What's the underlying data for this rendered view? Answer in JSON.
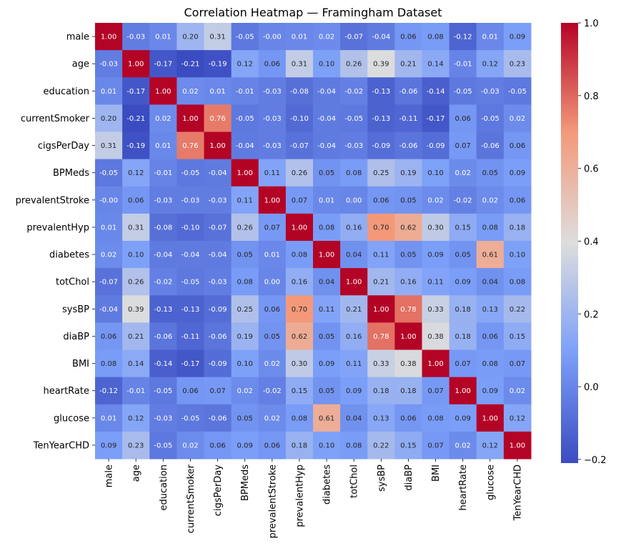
{
  "chart_data": {
    "type": "heatmap",
    "title": "Correlation Heatmap — Framingham Dataset",
    "labels": [
      "male",
      "age",
      "education",
      "currentSmoker",
      "cigsPerDay",
      "BPMeds",
      "prevalentStroke",
      "prevalentHyp",
      "diabetes",
      "totChol",
      "sysBP",
      "diaBP",
      "BMI",
      "heartRate",
      "glucose",
      "TenYearCHD"
    ],
    "matrix": [
      [
        1.0,
        -0.03,
        0.01,
        0.2,
        0.31,
        -0.05,
        -0.0,
        0.01,
        0.02,
        -0.07,
        -0.04,
        0.06,
        0.08,
        -0.12,
        0.01,
        0.09
      ],
      [
        -0.03,
        1.0,
        -0.17,
        -0.21,
        -0.19,
        0.12,
        0.06,
        0.31,
        0.1,
        0.26,
        0.39,
        0.21,
        0.14,
        -0.01,
        0.12,
        0.23
      ],
      [
        0.01,
        -0.17,
        1.0,
        0.02,
        0.01,
        -0.01,
        -0.03,
        -0.08,
        -0.04,
        -0.02,
        -0.13,
        -0.06,
        -0.14,
        -0.05,
        -0.03,
        -0.05
      ],
      [
        0.2,
        -0.21,
        0.02,
        1.0,
        0.76,
        -0.05,
        -0.03,
        -0.1,
        -0.04,
        -0.05,
        -0.13,
        -0.11,
        -0.17,
        0.06,
        -0.05,
        0.02
      ],
      [
        0.31,
        -0.19,
        0.01,
        0.76,
        1.0,
        -0.04,
        -0.03,
        -0.07,
        -0.04,
        -0.03,
        -0.09,
        -0.06,
        -0.09,
        0.07,
        -0.06,
        0.06
      ],
      [
        -0.05,
        0.12,
        -0.01,
        -0.05,
        -0.04,
        1.0,
        0.11,
        0.26,
        0.05,
        0.08,
        0.25,
        0.19,
        0.1,
        0.02,
        0.05,
        0.09
      ],
      [
        -0.0,
        0.06,
        -0.03,
        -0.03,
        -0.03,
        0.11,
        1.0,
        0.07,
        0.01,
        0.0,
        0.06,
        0.05,
        0.02,
        -0.02,
        0.02,
        0.06
      ],
      [
        0.01,
        0.31,
        -0.08,
        -0.1,
        -0.07,
        0.26,
        0.07,
        1.0,
        0.08,
        0.16,
        0.7,
        0.62,
        0.3,
        0.15,
        0.08,
        0.18
      ],
      [
        0.02,
        0.1,
        -0.04,
        -0.04,
        -0.04,
        0.05,
        0.01,
        0.08,
        1.0,
        0.04,
        0.11,
        0.05,
        0.09,
        0.05,
        0.61,
        0.1
      ],
      [
        -0.07,
        0.26,
        -0.02,
        -0.05,
        -0.03,
        0.08,
        0.0,
        0.16,
        0.04,
        1.0,
        0.21,
        0.16,
        0.11,
        0.09,
        0.04,
        0.08
      ],
      [
        -0.04,
        0.39,
        -0.13,
        -0.13,
        -0.09,
        0.25,
        0.06,
        0.7,
        0.11,
        0.21,
        1.0,
        0.78,
        0.33,
        0.18,
        0.13,
        0.22
      ],
      [
        0.06,
        0.21,
        -0.06,
        -0.11,
        -0.06,
        0.19,
        0.05,
        0.62,
        0.05,
        0.16,
        0.78,
        1.0,
        0.38,
        0.18,
        0.06,
        0.15
      ],
      [
        0.08,
        0.14,
        -0.14,
        -0.17,
        -0.09,
        0.1,
        0.02,
        0.3,
        0.09,
        0.11,
        0.33,
        0.38,
        1.0,
        0.07,
        0.08,
        0.07
      ],
      [
        -0.12,
        -0.01,
        -0.05,
        0.06,
        0.07,
        0.02,
        -0.02,
        0.15,
        0.05,
        0.09,
        0.18,
        0.18,
        0.07,
        1.0,
        0.09,
        0.02
      ],
      [
        0.01,
        0.12,
        -0.03,
        -0.05,
        -0.06,
        0.05,
        0.02,
        0.08,
        0.61,
        0.04,
        0.13,
        0.06,
        0.08,
        0.09,
        1.0,
        0.12
      ],
      [
        0.09,
        0.23,
        -0.05,
        0.02,
        0.06,
        0.09,
        0.06,
        0.18,
        0.1,
        0.08,
        0.22,
        0.15,
        0.07,
        0.02,
        0.12,
        1.0
      ]
    ],
    "colormap": "coolwarm",
    "vmin": -0.21,
    "vmax": 1.0,
    "colorbar_ticks": [
      1.0,
      0.8,
      0.6,
      0.4,
      0.2,
      0.0,
      -0.2
    ],
    "colorbar_tick_labels": [
      "1.0",
      "0.8",
      "0.6",
      "0.4",
      "0.2",
      "0.0",
      "−0.2"
    ],
    "annotation_format": "0.00"
  }
}
